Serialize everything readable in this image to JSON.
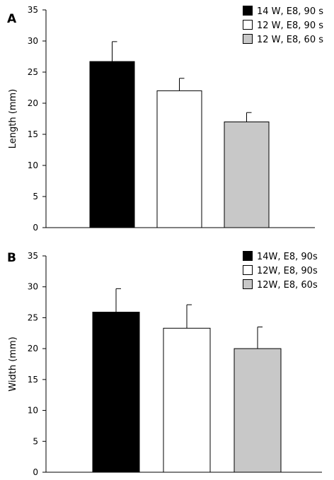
{
  "chart_data": [
    {
      "panel_label": "A",
      "type": "bar",
      "ylabel": "Length (mm)",
      "ylim": [
        0,
        35
      ],
      "yticks": [
        0,
        5,
        10,
        15,
        20,
        25,
        30,
        35
      ],
      "series": [
        {
          "name": "14 W, E8, 90 s",
          "value": 26.7,
          "error": 3.2,
          "color": "#000000"
        },
        {
          "name": "12 W, E8, 90 s",
          "value": 22.0,
          "error": 2.0,
          "color": "#ffffff"
        },
        {
          "name": "12 W, E8, 60 s",
          "value": 17.0,
          "error": 1.5,
          "color": "#c8c8c8"
        }
      ],
      "legend": "top-right",
      "grid": false
    },
    {
      "panel_label": "B",
      "type": "bar",
      "ylabel": "Width (mm)",
      "ylim": [
        0,
        35
      ],
      "yticks": [
        0,
        5,
        10,
        15,
        20,
        25,
        30,
        35
      ],
      "series": [
        {
          "name": "14W, E8, 90s",
          "value": 25.9,
          "error": 3.8,
          "color": "#000000"
        },
        {
          "name": "12W, E8, 90s",
          "value": 23.3,
          "error": 3.8,
          "color": "#ffffff"
        },
        {
          "name": "12W, E8, 60s",
          "value": 20.0,
          "error": 3.5,
          "color": "#c8c8c8"
        }
      ],
      "legend": "top-right",
      "grid": false
    }
  ]
}
